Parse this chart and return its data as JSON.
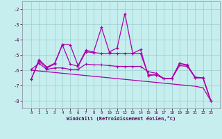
{
  "bg_color": "#c6eeee",
  "grid_color": "#99cccc",
  "line_color": "#aa00aa",
  "x": [
    0,
    1,
    2,
    3,
    4,
    5,
    6,
    7,
    8,
    9,
    10,
    11,
    12,
    13,
    14,
    15,
    16,
    17,
    18,
    19,
    20,
    21,
    22,
    23
  ],
  "series1": [
    -6.6,
    -5.3,
    -5.8,
    -5.55,
    -4.3,
    -4.35,
    -5.7,
    -4.7,
    -4.8,
    -3.2,
    -4.8,
    -4.55,
    -2.3,
    -4.9,
    -4.65,
    -6.35,
    -6.3,
    -6.55,
    -6.55,
    -5.55,
    -5.7,
    -6.45,
    -6.5,
    -8.0
  ],
  "series2": [
    -6.6,
    -5.4,
    -5.85,
    -5.6,
    -4.35,
    -5.6,
    -5.75,
    -4.8,
    -4.85,
    -4.9,
    -4.9,
    -4.9,
    -4.9,
    -4.9,
    -4.9,
    -6.3,
    -6.3,
    -6.55,
    -6.55,
    -5.55,
    -5.65,
    -6.5,
    -6.5,
    -8.0
  ],
  "series3": [
    -5.95,
    -5.55,
    -5.95,
    -5.85,
    -5.85,
    -5.95,
    -5.95,
    -5.6,
    -5.65,
    -5.65,
    -5.7,
    -5.75,
    -5.75,
    -5.75,
    -5.75,
    -6.1,
    -6.2,
    -6.55,
    -6.55,
    -5.7,
    -5.75,
    -6.5,
    -6.5,
    -8.0
  ],
  "series4_slope": [
    -6.0,
    -6.05,
    -6.1,
    -6.15,
    -6.2,
    -6.25,
    -6.3,
    -6.35,
    -6.4,
    -6.45,
    -6.5,
    -6.55,
    -6.6,
    -6.65,
    -6.7,
    -6.75,
    -6.8,
    -6.85,
    -6.9,
    -6.95,
    -7.0,
    -7.05,
    -7.15,
    -8.0
  ],
  "ylim": [
    -8.5,
    -1.5
  ],
  "yticks": [
    -8,
    -7,
    -6,
    -5,
    -4,
    -3,
    -2
  ],
  "xticks": [
    0,
    1,
    2,
    3,
    4,
    5,
    6,
    7,
    8,
    9,
    10,
    11,
    12,
    13,
    14,
    15,
    16,
    17,
    18,
    19,
    20,
    21,
    22,
    23
  ],
  "xlabel": "Windchill (Refroidissement éolien,°C)"
}
